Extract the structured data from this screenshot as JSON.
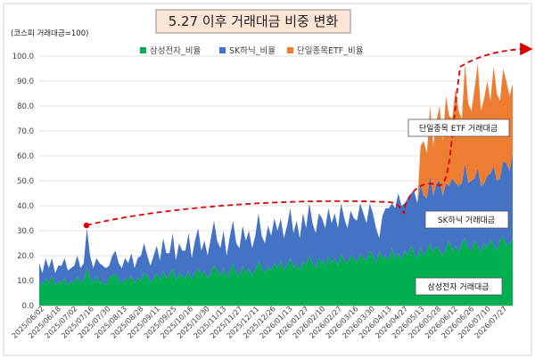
{
  "chart_data": {
    "type": "area",
    "stacked": true,
    "title": "5.27 이후 거래대금 비중 변화",
    "unit_label": "(코스피 거래대금=100)",
    "ylim": [
      0,
      100
    ],
    "yticks": [
      "0.0",
      "10.0",
      "20.0",
      "30.0",
      "40.0",
      "50.0",
      "60.0",
      "70.0",
      "80.0",
      "90.0",
      "100.0"
    ],
    "grid": true,
    "legend_position": "top",
    "x_tick_labels": [
      "2025/06/02",
      "2025/06/18",
      "2025/07/02",
      "2025/07/16",
      "2025/07/30",
      "2025/08/13",
      "2025/08/28",
      "2025/09/11",
      "2025/09/25",
      "2025/10/16",
      "2025/10/30",
      "2025/11/13",
      "2025/11/27",
      "2025/12/11",
      "2025/12/26",
      "2026/01/13",
      "2026/01/27",
      "2026/02/10",
      "2026/02/27",
      "2026/03/16",
      "2026/03/30",
      "2026/04/13",
      "2026/04/27",
      "2026/05/13",
      "2026/05/28",
      "2026/06/12",
      "2026/06/26",
      "2026/07/10",
      "2026/07/27"
    ],
    "series": [
      {
        "name": "삼성전자_비율",
        "color": "#00B050",
        "values": [
          10,
          8,
          11,
          9,
          12,
          8,
          10,
          9,
          11,
          8,
          10,
          9,
          12,
          9,
          10,
          15,
          11,
          9,
          12,
          9,
          10,
          8,
          11,
          12,
          13,
          10,
          9,
          11,
          10,
          12,
          9,
          11,
          10,
          13,
          12,
          9,
          11,
          13,
          10,
          14,
          11,
          12,
          15,
          10,
          13,
          12,
          11,
          14,
          10,
          13,
          15,
          12,
          14,
          11,
          13,
          16,
          14,
          12,
          15,
          11,
          14,
          17,
          13,
          12,
          16,
          13,
          15,
          12,
          14,
          18,
          15,
          13,
          16,
          14,
          17,
          15,
          18,
          14,
          16,
          19,
          15,
          17,
          14,
          18,
          16,
          20,
          17,
          15,
          19,
          18,
          16,
          20,
          17,
          19,
          16,
          21,
          18,
          17,
          20,
          19,
          17,
          21,
          19,
          18,
          22,
          20,
          17,
          22,
          19,
          20,
          18,
          23,
          19,
          21,
          18,
          22,
          20,
          24,
          21,
          19,
          23,
          20,
          22,
          25,
          21,
          24,
          22,
          20,
          23,
          26,
          22,
          24,
          21,
          25,
          27,
          23,
          22,
          26,
          24,
          21,
          25,
          23,
          27,
          24,
          22,
          26,
          28,
          24,
          25,
          27
        ]
      },
      {
        "name": "SK하닉_비율",
        "color": "#4472C4",
        "values": [
          7,
          5,
          8,
          6,
          7,
          5,
          6,
          7,
          8,
          6,
          5,
          7,
          8,
          6,
          7,
          16,
          9,
          6,
          7,
          8,
          6,
          7,
          5,
          8,
          9,
          7,
          6,
          8,
          7,
          9,
          6,
          8,
          10,
          12,
          8,
          7,
          9,
          11,
          8,
          13,
          10,
          9,
          14,
          8,
          12,
          10,
          11,
          15,
          9,
          13,
          16,
          10,
          12,
          9,
          14,
          18,
          12,
          11,
          15,
          9,
          14,
          17,
          12,
          11,
          16,
          13,
          15,
          11,
          14,
          19,
          13,
          12,
          16,
          14,
          18,
          15,
          17,
          13,
          16,
          20,
          14,
          17,
          13,
          19,
          15,
          21,
          16,
          14,
          18,
          17,
          15,
          19,
          16,
          18,
          15,
          20,
          17,
          14,
          18,
          16,
          17,
          20,
          18,
          15,
          19,
          17,
          14,
          5,
          17,
          19,
          21,
          18,
          20,
          24,
          22,
          19,
          23,
          21,
          25,
          22,
          26,
          24,
          21,
          27,
          23,
          25,
          28,
          24,
          26,
          22,
          29,
          25,
          27,
          24,
          30,
          26,
          28,
          25,
          31,
          27,
          24,
          29,
          26,
          32,
          28,
          25,
          30,
          33,
          29,
          34
        ]
      },
      {
        "name": "단일종목ETF_비율",
        "color": "#ED7D31",
        "values": [
          0,
          0,
          0,
          0,
          0,
          0,
          0,
          0,
          0,
          0,
          0,
          0,
          0,
          0,
          0,
          0,
          0,
          0,
          0,
          0,
          0,
          0,
          0,
          0,
          0,
          0,
          0,
          0,
          0,
          0,
          0,
          0,
          0,
          0,
          0,
          0,
          0,
          0,
          0,
          0,
          0,
          0,
          0,
          0,
          0,
          0,
          0,
          0,
          0,
          0,
          0,
          0,
          0,
          0,
          0,
          0,
          0,
          0,
          0,
          0,
          0,
          0,
          0,
          0,
          0,
          0,
          0,
          0,
          0,
          0,
          0,
          0,
          0,
          0,
          0,
          0,
          0,
          0,
          0,
          0,
          0,
          0,
          0,
          0,
          0,
          0,
          0,
          0,
          0,
          0,
          0,
          0,
          0,
          0,
          0,
          0,
          0,
          0,
          0,
          0,
          0,
          0,
          0,
          0,
          0,
          0,
          0,
          0,
          0,
          0,
          0,
          0,
          0,
          0,
          0,
          0,
          0,
          0,
          0,
          0,
          15,
          22,
          18,
          28,
          20,
          25,
          30,
          22,
          35,
          28,
          24,
          38,
          30,
          26,
          40,
          32,
          28,
          36,
          42,
          30,
          34,
          38,
          29,
          40,
          35,
          31,
          37,
          33,
          30,
          28
        ]
      }
    ],
    "annotations": {
      "trend_arrow": true,
      "callouts": [
        "단일종목 ETF 거래대금",
        "SK하닉 거래대금",
        "삼성전자 거래대금"
      ]
    }
  }
}
